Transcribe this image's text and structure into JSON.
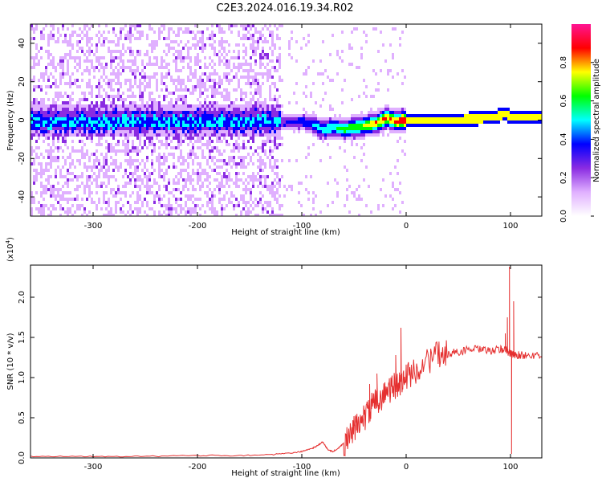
{
  "page_title": "C2E3.2024.016.19.34.R02",
  "chart_data": [
    {
      "type": "heatmap",
      "title": "C2E3.2024.016.19.34.R02",
      "xlabel": "Height of straight line (km)",
      "ylabel": "Frequency (Hz)",
      "xlim": [
        -360,
        130
      ],
      "ylim": [
        -50,
        50
      ],
      "xticks": [
        -300,
        -200,
        -100,
        0,
        100
      ],
      "xtick_labels": [
        "-300",
        "-200",
        "-100",
        "0",
        "100"
      ],
      "yticks": [
        -40,
        -20,
        0,
        20,
        40
      ],
      "ytick_labels": [
        "-40",
        "-20",
        "0",
        "20",
        "40"
      ],
      "grid": false,
      "colorbar": {
        "label": "Normalized spectral amplitude",
        "range": [
          0,
          1
        ],
        "ticks": [
          0.0,
          0.2,
          0.4,
          0.6,
          0.8
        ],
        "tick_labels": [
          "0.0",
          "0.2",
          "0.4",
          "0.6",
          "0.8"
        ],
        "colormap": [
          "#ffffff",
          "#e0b0ff",
          "#8a2be2",
          "#0000ff",
          "#00ffff",
          "#00ff00",
          "#ffff00",
          "#ff0000",
          "#ff1493"
        ]
      },
      "ridge": {
        "description_points_x": [
          -360,
          -300,
          -250,
          -200,
          -150,
          -120,
          -100,
          -90,
          -80,
          -70,
          -60,
          -50,
          -40,
          -30,
          -20,
          -15,
          -10,
          0,
          20,
          50,
          80,
          95,
          100,
          130
        ],
        "description_points_freq": [
          0,
          0,
          0,
          0,
          0,
          0,
          0,
          -2,
          -4,
          -3,
          -4,
          -3,
          -2,
          -1,
          2,
          1,
          0,
          1,
          1,
          1,
          2,
          4,
          2,
          2
        ]
      }
    },
    {
      "type": "line",
      "xlabel": "Height of straight line (km)",
      "ylabel": "SNR (10 * v/v)",
      "y_multiplier_label": "(x10",
      "y_multiplier_exp": "4",
      "xlim": [
        -360,
        130
      ],
      "ylim": [
        0,
        2.4
      ],
      "xticks": [
        -300,
        -200,
        -100,
        0,
        100
      ],
      "xtick_labels": [
        "-300",
        "-200",
        "-100",
        "0",
        "100"
      ],
      "yticks": [
        0.0,
        0.5,
        1.0,
        1.5,
        2.0
      ],
      "ytick_labels": [
        "0.0",
        "0.5",
        "1.0",
        "1.5",
        "2.0"
      ],
      "grid": false,
      "color": "#e53030",
      "series": [
        {
          "x": [
            -360,
            -320,
            -280,
            -240,
            -200,
            -160,
            -130,
            -110,
            -100,
            -90,
            -85,
            -80,
            -75,
            -70,
            -65,
            -60,
            -55,
            -50,
            -45,
            -40,
            -35,
            -30,
            -25,
            -20,
            -15,
            -10,
            -5,
            0,
            10,
            20,
            30,
            40,
            50,
            60,
            70,
            80,
            90,
            95,
            98,
            100,
            102,
            105,
            110,
            120,
            130
          ],
          "y": [
            0.02,
            0.02,
            0.02,
            0.02,
            0.03,
            0.03,
            0.04,
            0.06,
            0.08,
            0.12,
            0.15,
            0.2,
            0.1,
            0.08,
            0.12,
            0.18,
            0.25,
            0.35,
            0.45,
            0.5,
            0.6,
            0.7,
            0.75,
            0.8,
            0.85,
            0.9,
            0.95,
            1.0,
            1.1,
            1.2,
            1.28,
            1.3,
            1.32,
            1.35,
            1.35,
            1.33,
            1.35,
            1.35,
            1.32,
            1.3,
            1.28,
            1.28,
            1.28,
            1.28,
            1.25
          ],
          "spikes": [
            {
              "x": -5,
              "y": 1.62
            },
            {
              "x": -28,
              "y": 1.05
            },
            {
              "x": -35,
              "y": 0.92
            },
            {
              "x": -10,
              "y": 1.28
            },
            {
              "x": 99,
              "y": 2.38
            },
            {
              "x": 97,
              "y": 1.75
            },
            {
              "x": 101,
              "y": 0.05
            },
            {
              "x": 103,
              "y": 1.95
            },
            {
              "x": 95,
              "y": 1.55
            }
          ]
        }
      ]
    }
  ]
}
